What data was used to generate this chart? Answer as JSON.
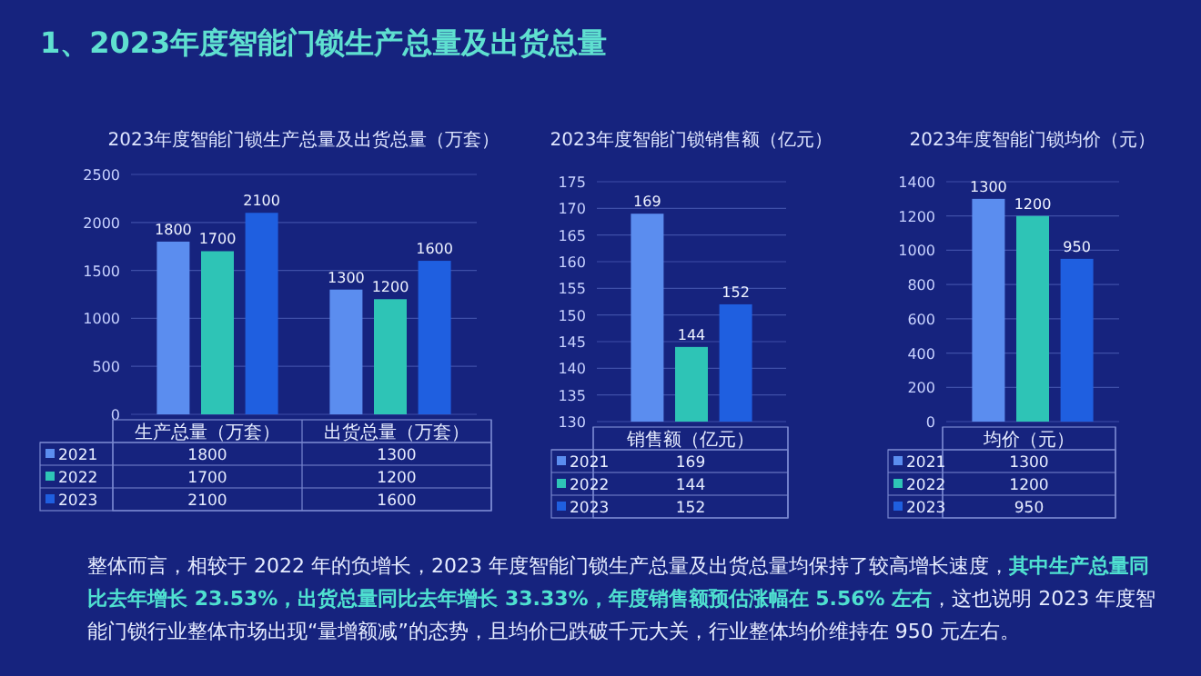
{
  "chart_data": [
    {
      "type": "bar",
      "title": "2023年度智能门锁生产总量及出货总量（万套）",
      "categories": [
        "生产总量（万套）",
        "出货总量（万套）"
      ],
      "series": [
        {
          "name": "2021",
          "color": "#5b8def",
          "values": [
            1800,
            1300
          ]
        },
        {
          "name": "2022",
          "color": "#2ec4b6",
          "values": [
            1700,
            1200
          ]
        },
        {
          "name": "2023",
          "color": "#1f5fe0",
          "values": [
            2100,
            1600
          ]
        }
      ],
      "ylim": [
        0,
        2500
      ],
      "yticks": [
        0,
        500,
        1000,
        1500,
        2000,
        2500
      ],
      "grid": "y",
      "legend": "bottom",
      "data_labels": true,
      "annotations": [
        "1、2023年度智能门锁生产总量及出货总量",
        "整体而言，相较于 2022 年的负增长，2023 年度智能门锁生产总量及出货总量均保持了较高增长速度，**其中生产总量同比去年增长 23.53%，出货总量同比去年增长 33.33%，年度销售额预估涨幅在 5.56% 左右**，这也说明 2023 年度智能门锁行业整体市场出现“量增额减”的态势，且均价已跌破千元大关，行业整体均价维持在 950 元左右。",
        "1800",
        "1300",
        "1700",
        "1200",
        "2100",
        "1600"
      ]
    },
    {
      "type": "bar",
      "title": "2023年度智能门锁销售额（亿元）",
      "categories": [
        "销售额（亿元）"
      ],
      "series": [
        {
          "name": "2021",
          "color": "#5b8def",
          "values": [
            169
          ]
        },
        {
          "name": "2022",
          "color": "#2ec4b6",
          "values": [
            144
          ]
        },
        {
          "name": "2023",
          "color": "#1f5fe0",
          "values": [
            152
          ]
        }
      ],
      "ylim": [
        130,
        175
      ],
      "yticks": [
        130,
        135,
        140,
        145,
        150,
        155,
        160,
        165,
        170,
        175
      ],
      "grid": "y",
      "legend": "bottom",
      "data_labels": true,
      "annotations": [
        "169",
        "144",
        "152"
      ]
    },
    {
      "type": "bar",
      "title": "2023年度智能门锁均价（元）",
      "categories": [
        "均价（元）"
      ],
      "series": [
        {
          "name": "2021",
          "color": "#5b8def",
          "values": [
            1300
          ]
        },
        {
          "name": "2022",
          "color": "#2ec4b6",
          "values": [
            1200
          ]
        },
        {
          "name": "2023",
          "color": "#1f5fe0",
          "values": [
            950
          ]
        }
      ],
      "ylim": [
        0,
        1400
      ],
      "yticks": [
        0,
        200,
        400,
        600,
        800,
        1000,
        1200,
        1400
      ],
      "grid": "y",
      "legend": "bottom",
      "data_labels": true,
      "annotations": [
        "1300",
        "1200",
        "950"
      ]
    }
  ]
}
